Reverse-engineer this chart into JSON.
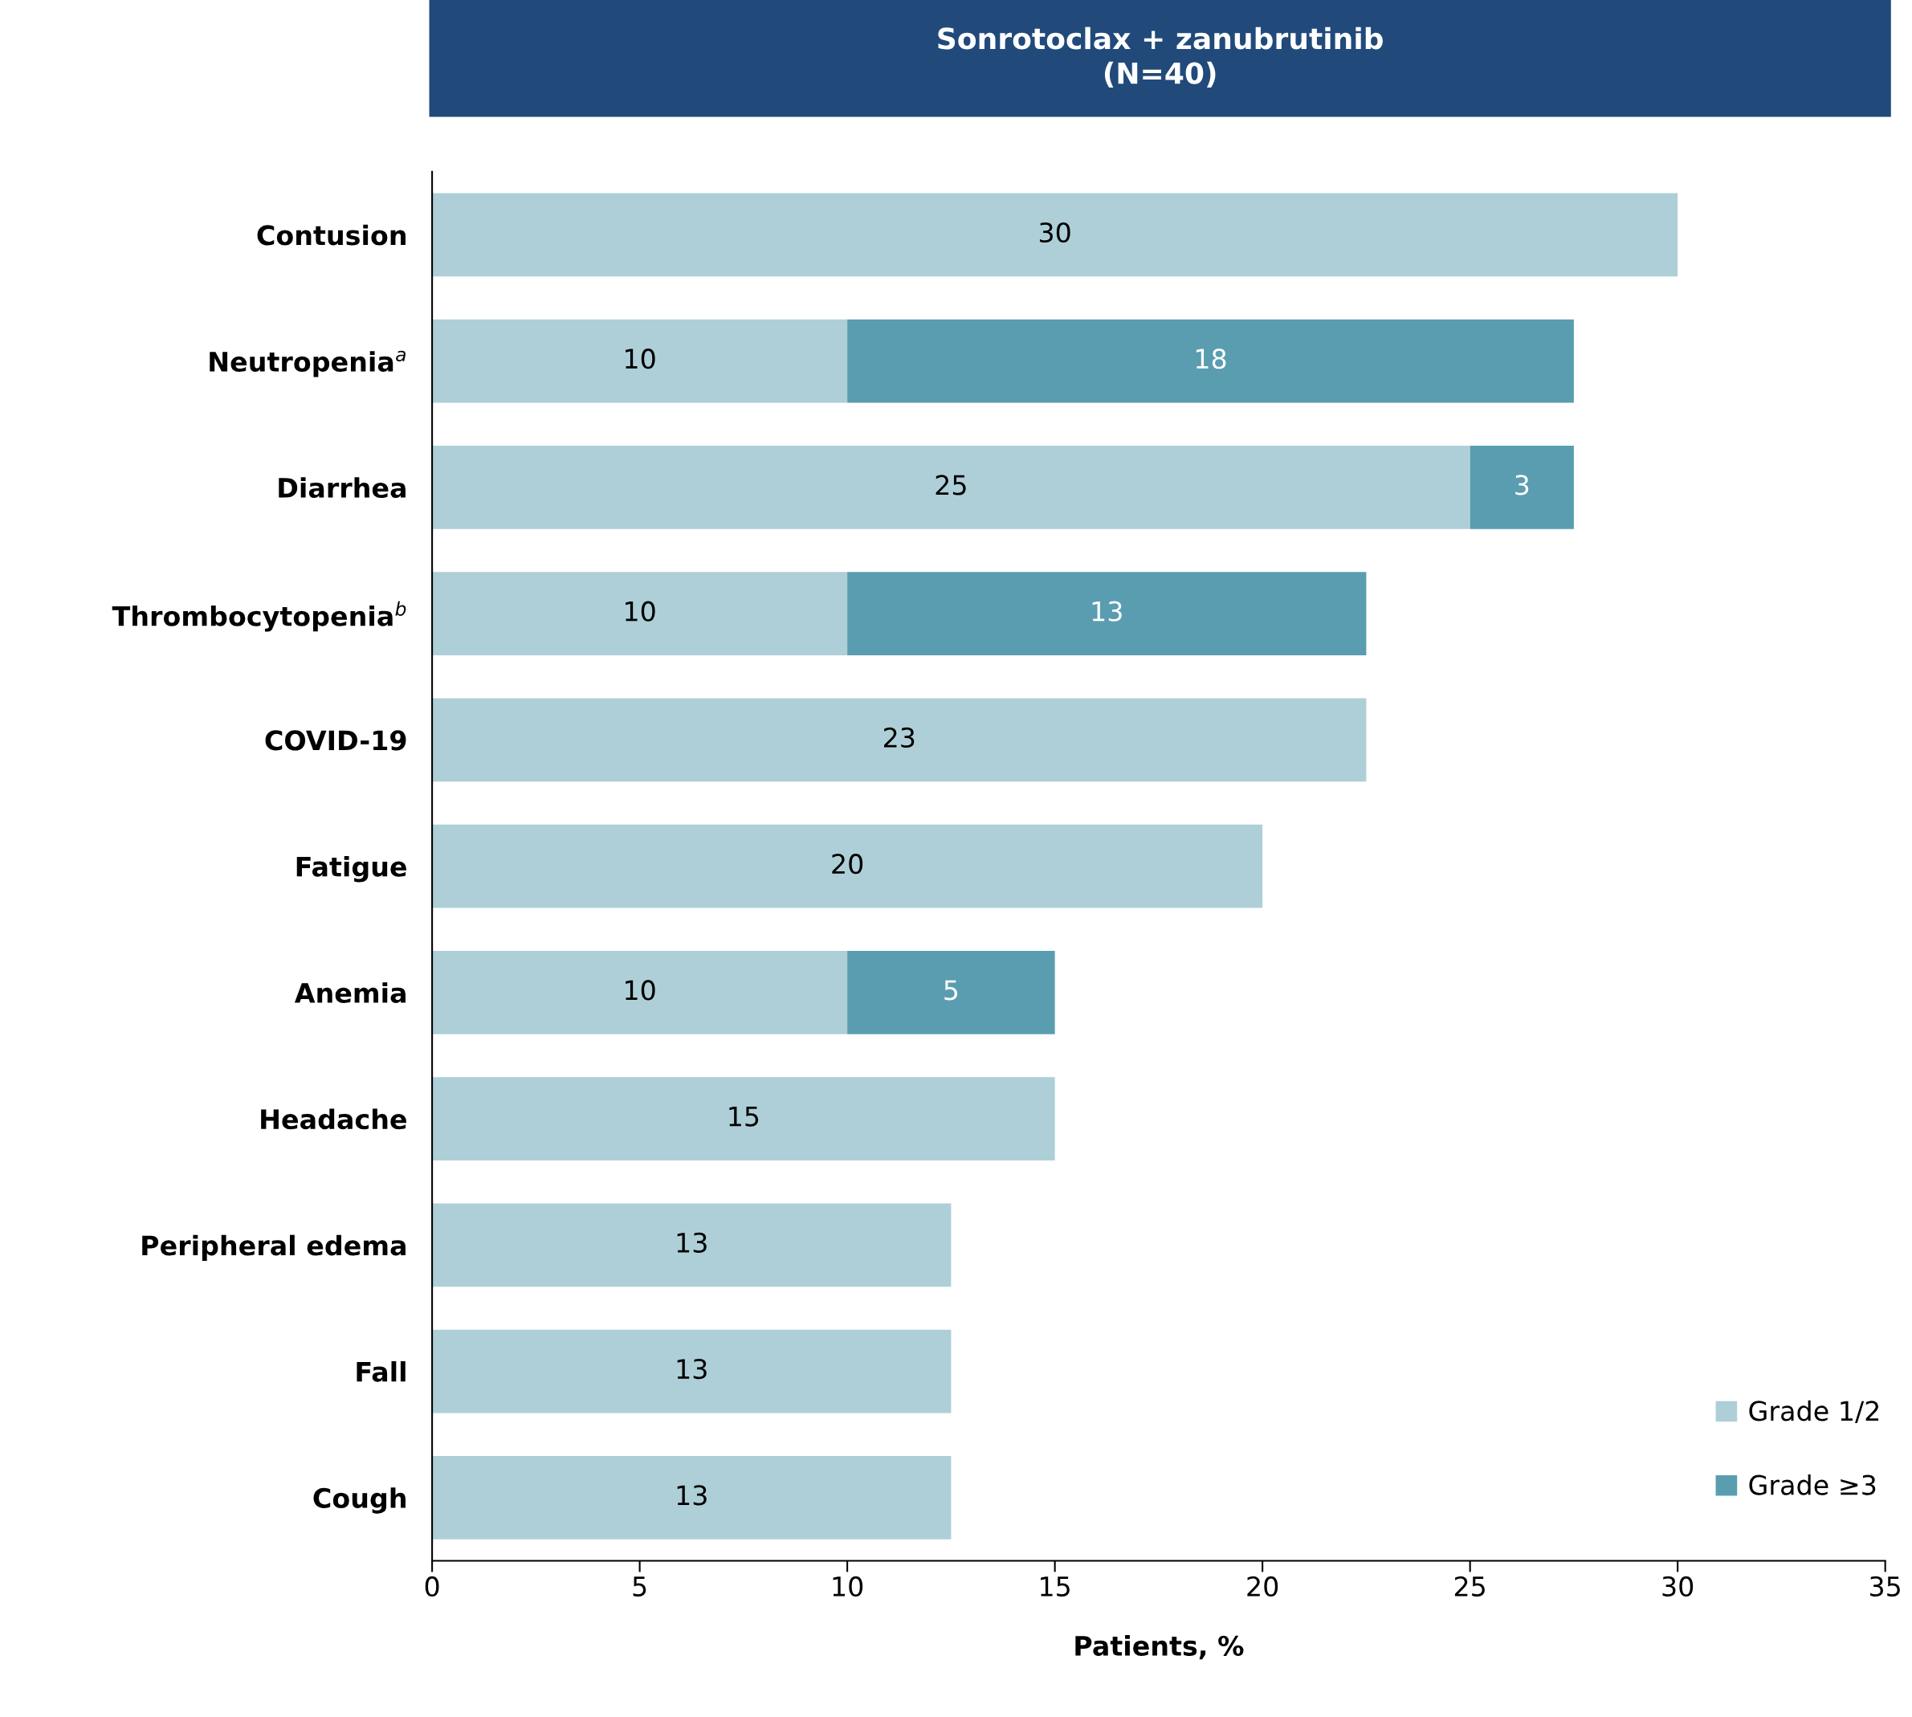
{
  "chart_data": {
    "type": "bar",
    "orientation": "horizontal",
    "stacked": true,
    "title": "Sonrotoclax + zanubrutinib\n(N=40)",
    "xlabel": "Patients, %",
    "categories": [
      "Contusion",
      "Neutropenia$^{a}$",
      "Diarrhea",
      "Thrombocytopenia$^{b}$",
      "COVID-19",
      "Fatigue",
      "Anemia",
      "Headache",
      "Peripheral edema",
      "Fall",
      "Cough"
    ],
    "series": [
      {
        "name": "Grade 1/2",
        "color": "#aecfd7",
        "values": [
          30,
          10,
          25,
          10,
          22.5,
          20,
          10,
          15,
          12.5,
          12.5,
          12.5
        ],
        "value_labels": [
          "30",
          "10",
          "25",
          "10",
          "23",
          "20",
          "10",
          "15",
          "13",
          "13",
          "13"
        ]
      },
      {
        "name": "Grade ≥3",
        "color": "#5a9db0",
        "values": [
          null,
          17.5,
          2.5,
          12.5,
          null,
          null,
          5,
          null,
          null,
          null,
          null
        ],
        "value_labels": [
          null,
          "18",
          "3",
          "13",
          null,
          null,
          "5",
          null,
          null,
          null,
          null
        ]
      }
    ],
    "xlim": [
      0,
      35
    ],
    "xticks": [
      0,
      5,
      10,
      15,
      20,
      25,
      30,
      35
    ],
    "legend": "bottom right",
    "grid": false
  }
}
